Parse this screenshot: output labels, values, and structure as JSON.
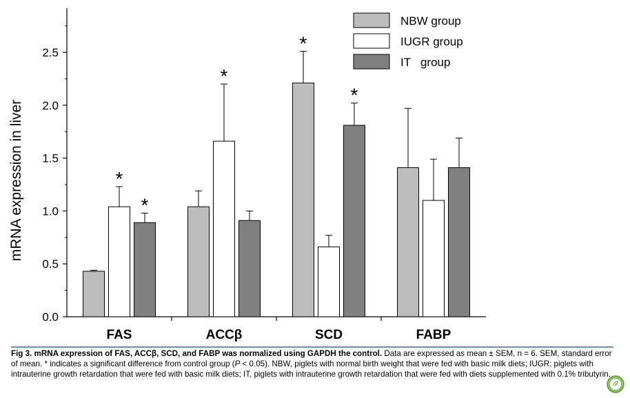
{
  "chart_data": {
    "type": "bar",
    "categories": [
      "FAS",
      "ACCβ",
      "SCD",
      "FABP"
    ],
    "series": [
      {
        "name": "NBW group",
        "color": "#bdbdbd",
        "values": [
          0.43,
          1.04,
          2.21,
          1.41
        ],
        "errors": [
          0.01,
          0.15,
          0.3,
          0.56
        ],
        "sig": [
          false,
          false,
          true,
          false
        ]
      },
      {
        "name": "IUGR group",
        "color": "#ffffff",
        "values": [
          1.04,
          1.66,
          0.66,
          1.1
        ],
        "errors": [
          0.19,
          0.54,
          0.11,
          0.39
        ],
        "sig": [
          true,
          true,
          false,
          false
        ]
      },
      {
        "name": "IT   group",
        "color": "#808080",
        "values": [
          0.89,
          0.91,
          1.81,
          1.41
        ],
        "errors": [
          0.09,
          0.09,
          0.21,
          0.28
        ],
        "sig": [
          true,
          false,
          true,
          false
        ]
      }
    ],
    "ylabel": "mRNA  expression  in  liver",
    "xlabel": "",
    "ylim": [
      0,
      2.9
    ],
    "yticks": [
      "0.0",
      "0.5",
      "1.0",
      "1.5",
      "2.0",
      "2.5"
    ],
    "sig_marker": "*",
    "legend_position": "top-right",
    "grid": false
  },
  "caption": {
    "fig_label": "Fig 3.",
    "bold_title": "mRNA expression of FAS, ACCβ, SCD, and FABP was normalized using GAPDH the control.",
    "text_1": " Data are expressed as mean ± SEM, n = 6. SEM, standard error of mean. * indicates a significant difference from control group (",
    "p_italic": "P",
    "text_2": " < 0.05). NBW, piglets with normal birth weight that were fed with basic milk diets; IUGR: piglets with intrauterine growth retardation that were fed with basic milk diets; IT, piglets with intrauterine growth retardation that were fed with diets supplemented with 0.1% tributyrin."
  },
  "logo_icon": "plos-leaf-icon"
}
